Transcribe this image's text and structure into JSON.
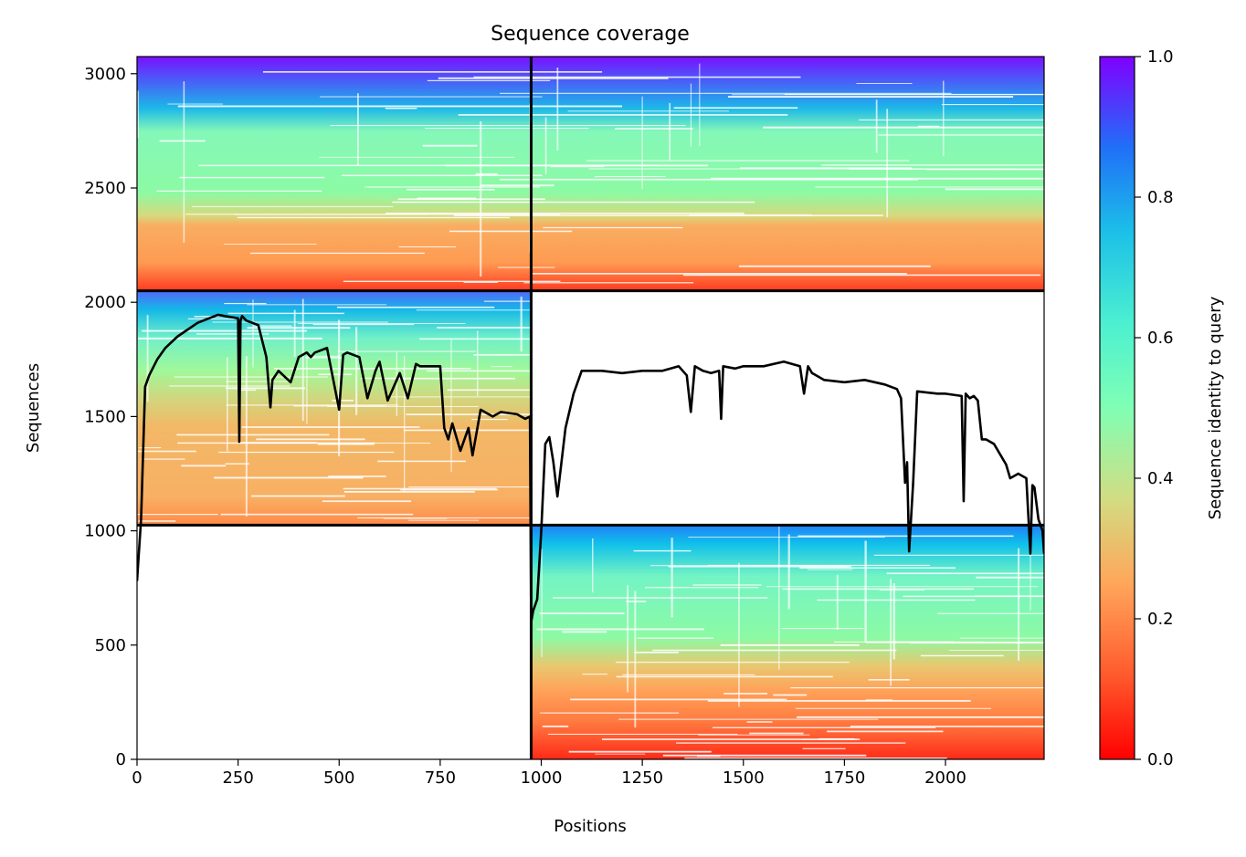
{
  "chart_data": {
    "type": "heatmap",
    "title": "Sequence coverage",
    "xlabel": "Positions",
    "ylabel": "Sequences",
    "xlim": [
      0,
      2244
    ],
    "ylim": [
      0,
      3075
    ],
    "x_ticks": [
      0,
      250,
      500,
      750,
      1000,
      1250,
      1500,
      1750,
      2000
    ],
    "y_ticks": [
      0,
      500,
      1000,
      1500,
      2000,
      2500,
      3000
    ],
    "chain_boundary_x": 975,
    "msa_blocks": [
      {
        "name": "paired",
        "x": [
          0,
          2244
        ],
        "y": [
          2050,
          3075
        ]
      },
      {
        "name": "chain-1-unpaired",
        "x": [
          0,
          975
        ],
        "y": [
          1025,
          2050
        ]
      },
      {
        "name": "chain-2-unpaired",
        "x": [
          975,
          2244
        ],
        "y": [
          0,
          1025
        ]
      }
    ],
    "colorbar": {
      "label": "Sequence identity to query",
      "colormap": "rainbow_r",
      "range": [
        0.0,
        1.0
      ],
      "ticks": [
        "0.0",
        "0.2",
        "0.4",
        "0.6",
        "0.8",
        "1.0"
      ]
    },
    "series": [
      {
        "type": "line",
        "color": "#000000",
        "x": [
          0,
          10,
          20,
          30,
          50,
          70,
          100,
          150,
          200,
          250,
          253,
          256,
          260,
          270,
          300,
          320,
          330,
          335,
          350,
          380,
          400,
          420,
          430,
          440,
          470,
          500,
          510,
          520,
          550,
          570,
          590,
          600,
          620,
          640,
          650,
          670,
          690,
          700,
          720,
          750,
          760,
          770,
          780,
          800,
          820,
          830,
          850,
          880,
          900,
          940,
          960,
          972,
          975,
          980,
          990,
          1000,
          1010,
          1020,
          1030,
          1040,
          1060,
          1080,
          1100,
          1150,
          1200,
          1250,
          1300,
          1340,
          1360,
          1370,
          1380,
          1400,
          1420,
          1440,
          1445,
          1450,
          1480,
          1500,
          1550,
          1600,
          1640,
          1650,
          1660,
          1670,
          1700,
          1750,
          1800,
          1850,
          1880,
          1890,
          1900,
          1905,
          1910,
          1920,
          1930,
          1980,
          2000,
          2040,
          2045,
          2050,
          2060,
          2070,
          2080,
          2090,
          2100,
          2120,
          2150,
          2160,
          2180,
          2200,
          2210,
          2215,
          2220,
          2230,
          2240,
          2244
        ],
        "y": [
          780,
          1050,
          1630,
          1680,
          1750,
          1800,
          1850,
          1910,
          1945,
          1930,
          1390,
          1920,
          1940,
          1920,
          1900,
          1760,
          1540,
          1660,
          1700,
          1650,
          1760,
          1780,
          1760,
          1780,
          1800,
          1530,
          1770,
          1780,
          1760,
          1580,
          1700,
          1740,
          1570,
          1650,
          1690,
          1580,
          1730,
          1720,
          1720,
          1720,
          1450,
          1400,
          1470,
          1350,
          1450,
          1330,
          1530,
          1500,
          1520,
          1510,
          1490,
          1500,
          600,
          650,
          700,
          1000,
          1380,
          1410,
          1300,
          1150,
          1450,
          1600,
          1700,
          1700,
          1690,
          1700,
          1700,
          1720,
          1680,
          1520,
          1720,
          1700,
          1690,
          1700,
          1490,
          1720,
          1710,
          1720,
          1720,
          1740,
          1720,
          1600,
          1720,
          1690,
          1660,
          1650,
          1660,
          1640,
          1620,
          1580,
          1210,
          1300,
          910,
          1210,
          1610,
          1600,
          1600,
          1590,
          1130,
          1600,
          1580,
          1590,
          1570,
          1400,
          1400,
          1380,
          1290,
          1230,
          1250,
          1230,
          900,
          1200,
          1190,
          1050,
          1000,
          900
        ]
      }
    ]
  }
}
